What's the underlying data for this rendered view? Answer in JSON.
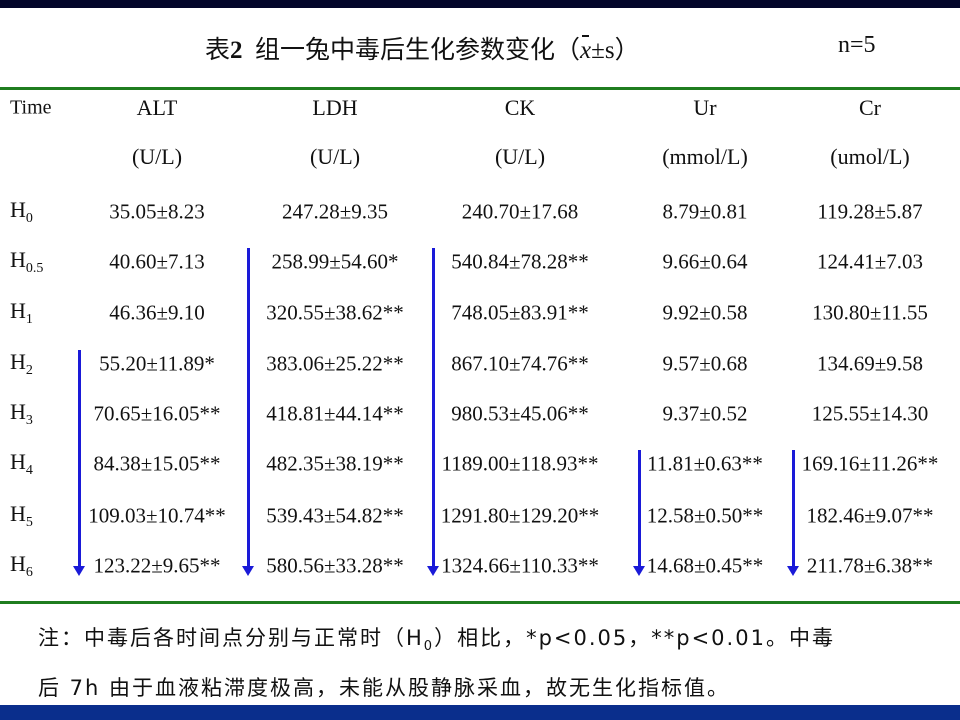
{
  "title": {
    "prefix": "表",
    "number": "2",
    "text": "组一兔中毒后生化参数变化（",
    "xbar": "x",
    "pm": "±s）",
    "n": "n=5"
  },
  "columns": [
    {
      "name": "Time",
      "unit": ""
    },
    {
      "name": "ALT",
      "unit": "(U/L)"
    },
    {
      "name": "LDH",
      "unit": "(U/L)"
    },
    {
      "name": "CK",
      "unit": "(U/L)"
    },
    {
      "name": "Ur",
      "unit": "(mmol/L)"
    },
    {
      "name": "Cr",
      "unit": "(umol/L)"
    }
  ],
  "rows": [
    {
      "time": "H",
      "sub": "0",
      "values": [
        "35.05±8.23",
        "247.28±9.35",
        "240.70±17.68",
        "8.79±0.81",
        "119.28±5.87"
      ]
    },
    {
      "time": "H",
      "sub": "0.5",
      "values": [
        "40.60±7.13",
        "258.99±54.60*",
        "540.84±78.28**",
        "9.66±0.64",
        "124.41±7.03"
      ]
    },
    {
      "time": "H",
      "sub": "1",
      "values": [
        "46.36±9.10",
        "320.55±38.62**",
        "748.05±83.91**",
        "9.92±0.58",
        "130.80±11.55"
      ]
    },
    {
      "time": "H",
      "sub": "2",
      "values": [
        "55.20±11.89*",
        "383.06±25.22**",
        "867.10±74.76**",
        "9.57±0.68",
        "134.69±9.58"
      ]
    },
    {
      "time": "H",
      "sub": "3",
      "values": [
        "70.65±16.05**",
        "418.81±44.14**",
        "980.53±45.06**",
        "9.37±0.52",
        "125.55±14.30"
      ]
    },
    {
      "time": "H",
      "sub": "4",
      "values": [
        "84.38±15.05**",
        "482.35±38.19**",
        "1189.00±118.93**",
        "11.81±0.63**",
        "169.16±11.26**"
      ]
    },
    {
      "time": "H",
      "sub": "5",
      "values": [
        "109.03±10.74**",
        "539.43±54.82**",
        "1291.80±129.20**",
        "12.58±0.50**",
        "182.46±9.07**"
      ]
    },
    {
      "time": "H",
      "sub": "6",
      "values": [
        "123.22±9.65**",
        "580.56±33.28**",
        "1324.66±110.33**",
        "14.68±0.45**",
        "211.78±6.38**"
      ]
    }
  ],
  "trend_arrows": [
    {
      "column": "ALT",
      "from": "H2",
      "to": "H6"
    },
    {
      "column": "LDH",
      "from": "H0.5",
      "to": "H6"
    },
    {
      "column": "CK",
      "from": "H0.5",
      "to": "H6"
    },
    {
      "column": "Ur",
      "from": "H4",
      "to": "H6"
    },
    {
      "column": "Cr",
      "from": "H4",
      "to": "H6"
    }
  ],
  "note": {
    "line1_a": "注：中毒后各时间点分别与正常时（H",
    "line1_sub": "0",
    "line1_b": "）相比，*p<0.05，**p<0.01。中毒",
    "line2": "后 7h 由于血液粘滞度极高，未能从股静脉采血，故无生化指标值。"
  },
  "colors": {
    "accent_line": "#1f7d1f",
    "arrow": "#1a1ad8",
    "top_band": "#03062a",
    "bottom_band": "#0a2e8c"
  }
}
